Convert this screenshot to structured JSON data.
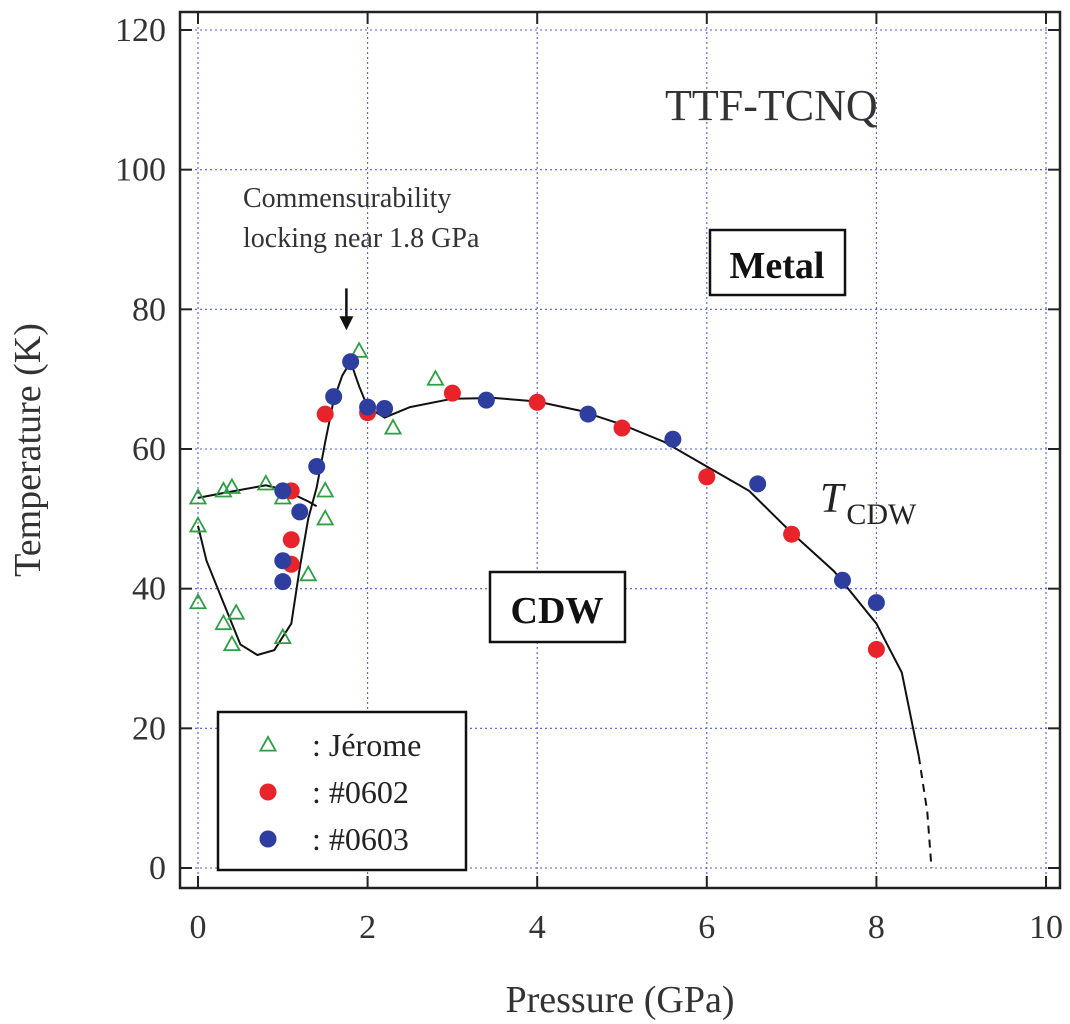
{
  "chart_data": {
    "type": "scatter",
    "title": "TTF-TCNQ",
    "xlabel": "Pressure (GPa)",
    "ylabel": "Temperature (K)",
    "xlim": [
      0,
      10
    ],
    "ylim": [
      0,
      120
    ],
    "xticks": [
      "0",
      "2",
      "4",
      "6",
      "8",
      "10"
    ],
    "yticks": [
      "0",
      "20",
      "40",
      "60",
      "80",
      "100",
      "120"
    ],
    "grid": true,
    "legend_position": "bottom-left",
    "annotation_line1": "Commensurability",
    "annotation_line2": "locking near 1.8 GPa",
    "annotation_arrow_x": 1.75,
    "annotation_arrow_from_y": 83,
    "annotation_arrow_to_y": 77,
    "region_metal": "Metal",
    "region_cdw": "CDW",
    "curve_label_main": "T",
    "curve_label_sub": "CDW",
    "series": [
      {
        "name": ": Jérome",
        "marker": "triangle",
        "color": "#2e9e44",
        "points": [
          [
            0.0,
            53
          ],
          [
            0.0,
            49
          ],
          [
            0.0,
            38
          ],
          [
            0.3,
            54
          ],
          [
            0.4,
            54.5
          ],
          [
            0.3,
            35
          ],
          [
            0.4,
            32
          ],
          [
            0.45,
            36.5
          ],
          [
            0.8,
            55
          ],
          [
            1.0,
            53
          ],
          [
            1.0,
            33
          ],
          [
            1.3,
            42
          ],
          [
            1.5,
            54
          ],
          [
            1.5,
            50
          ],
          [
            1.9,
            74
          ],
          [
            2.3,
            63
          ],
          [
            2.8,
            70
          ]
        ]
      },
      {
        "name": ": #0602",
        "marker": "circle",
        "color": "#e8242a",
        "points": [
          [
            1.1,
            54
          ],
          [
            1.1,
            47
          ],
          [
            1.1,
            43.5
          ],
          [
            1.5,
            65
          ],
          [
            2.0,
            65.2
          ],
          [
            3.0,
            68
          ],
          [
            4.0,
            66.7
          ],
          [
            5.0,
            63
          ],
          [
            6.0,
            56
          ],
          [
            7.0,
            47.8
          ],
          [
            8.0,
            31.3
          ]
        ]
      },
      {
        "name": ": #0603",
        "marker": "circle",
        "color": "#2d3e9e",
        "points": [
          [
            1.0,
            54
          ],
          [
            1.0,
            44
          ],
          [
            1.0,
            41
          ],
          [
            1.2,
            51
          ],
          [
            1.4,
            57.5
          ],
          [
            1.6,
            67.5
          ],
          [
            1.8,
            72.5
          ],
          [
            2.0,
            66
          ],
          [
            2.2,
            65.8
          ],
          [
            3.4,
            67
          ],
          [
            4.6,
            65
          ],
          [
            5.6,
            61.4
          ],
          [
            6.6,
            55
          ],
          [
            7.6,
            41.2
          ],
          [
            8.0,
            38
          ]
        ]
      }
    ],
    "phase_boundary": {
      "upper_branch": [
        [
          0.0,
          53
        ],
        [
          0.3,
          53.7
        ],
        [
          0.8,
          54.8
        ],
        [
          1.0,
          54.2
        ],
        [
          1.3,
          52.5
        ],
        [
          1.4,
          51.8
        ]
      ],
      "lower_branch": [
        [
          0.0,
          49
        ],
        [
          0.1,
          44
        ],
        [
          0.3,
          38
        ],
        [
          0.5,
          32
        ],
        [
          0.7,
          30.5
        ],
        [
          0.9,
          31.2
        ],
        [
          1.1,
          35
        ],
        [
          1.2,
          43
        ],
        [
          1.3,
          50
        ],
        [
          1.4,
          54.5
        ],
        [
          1.5,
          61
        ],
        [
          1.6,
          67
        ],
        [
          1.7,
          70.5
        ],
        [
          1.8,
          72.5
        ],
        [
          1.9,
          69
        ],
        [
          2.0,
          66
        ],
        [
          2.2,
          64.5
        ],
        [
          2.5,
          66
        ],
        [
          3.0,
          67.2
        ],
        [
          3.5,
          67.3
        ],
        [
          4.0,
          66.8
        ],
        [
          4.5,
          65.5
        ],
        [
          5.0,
          63.5
        ],
        [
          5.5,
          61
        ],
        [
          6.0,
          57.5
        ],
        [
          6.5,
          54
        ],
        [
          7.0,
          48
        ],
        [
          7.5,
          42.5
        ],
        [
          8.0,
          35
        ],
        [
          8.3,
          28
        ],
        [
          8.5,
          16
        ]
      ],
      "dashed_extension": [
        [
          8.5,
          16
        ],
        [
          8.6,
          8
        ],
        [
          8.65,
          0
        ]
      ]
    }
  }
}
